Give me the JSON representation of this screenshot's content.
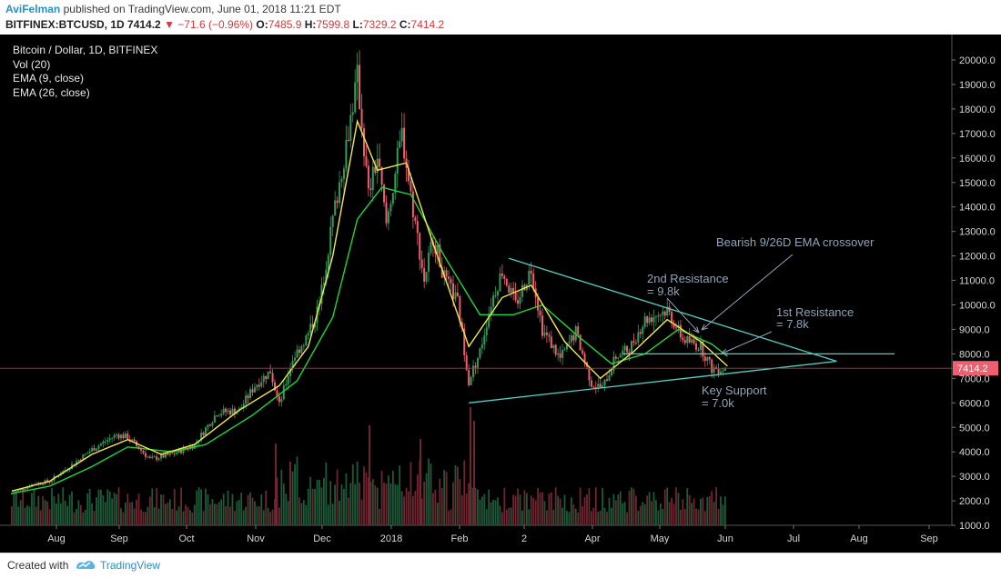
{
  "header": {
    "author": "AviFelman",
    "published": "published on TradingView.com, June 01, 2018 11:21 EDT",
    "symbol": "BITFINEX:BTCUSD, 1D",
    "last": "7414.2",
    "change": "−71.6 (−0.96%)",
    "o_label": "O:",
    "o_value": "7485.9",
    "h_label": "H:",
    "h_value": "7599.8",
    "l_label": "L:",
    "l_value": "7329.2",
    "c_label": "C:",
    "c_value": "7414.2"
  },
  "legend": {
    "title": "Bitcoin / Dollar, 1D, BITFINEX",
    "vol": "Vol (20)",
    "ema9": "EMA (9, close)",
    "ema26": "EMA (26, close)"
  },
  "footer": {
    "created": "Created with",
    "brand": "TradingView"
  },
  "colors": {
    "up": "#2e9e5b",
    "down": "#ef5f6f",
    "ema9": "#f2e94a",
    "ema26": "#22d43b",
    "trend": "#4fd1c5",
    "annotation": "#8fa3b8",
    "price_line": "#b23a48"
  },
  "chart_data": {
    "type": "candlestick",
    "y_axis_ticks": [
      "20000.0",
      "19000.0",
      "18000.0",
      "17000.0",
      "16000.0",
      "15000.0",
      "14000.0",
      "13000.0",
      "12000.0",
      "11000.0",
      "10000.0",
      "9000.0",
      "8000.0",
      "7000.0",
      "6000.0",
      "5000.0",
      "4000.0",
      "3000.0",
      "2000.0",
      "1000.0"
    ],
    "x_axis_ticks": [
      "Aug",
      "Sep",
      "Oct",
      "Nov",
      "Dec",
      "2018",
      "Feb",
      "2",
      "Apr",
      "May",
      "Jun",
      "Jul",
      "Aug",
      "Sep"
    ],
    "last_price_label": "7414.2",
    "close_path": [
      [
        "2017-07-15",
        2300
      ],
      [
        "2017-07-25",
        2700
      ],
      [
        "2017-08-01",
        2800
      ],
      [
        "2017-08-10",
        3400
      ],
      [
        "2017-08-20",
        4100
      ],
      [
        "2017-08-31",
        4700
      ],
      [
        "2017-09-05",
        4600
      ],
      [
        "2017-09-15",
        3700
      ],
      [
        "2017-09-25",
        3900
      ],
      [
        "2017-10-05",
        4300
      ],
      [
        "2017-10-15",
        5600
      ],
      [
        "2017-10-25",
        5700
      ],
      [
        "2017-11-01",
        6700
      ],
      [
        "2017-11-08",
        7300
      ],
      [
        "2017-11-12",
        5900
      ],
      [
        "2017-11-18",
        7800
      ],
      [
        "2017-11-25",
        8800
      ],
      [
        "2017-11-30",
        10000
      ],
      [
        "2017-12-06",
        13500
      ],
      [
        "2017-12-10",
        15500
      ],
      [
        "2017-12-17",
        19300
      ],
      [
        "2017-12-22",
        14500
      ],
      [
        "2017-12-26",
        16000
      ],
      [
        "2017-12-30",
        13300
      ],
      [
        "2018-01-06",
        17000
      ],
      [
        "2018-01-10",
        14500
      ],
      [
        "2018-01-16",
        11000
      ],
      [
        "2018-01-20",
        12800
      ],
      [
        "2018-01-25",
        11100
      ],
      [
        "2018-01-31",
        10100
      ],
      [
        "2018-02-05",
        6900
      ],
      [
        "2018-02-10",
        8100
      ],
      [
        "2018-02-15",
        10100
      ],
      [
        "2018-02-20",
        11400
      ],
      [
        "2018-02-26",
        10000
      ],
      [
        "2018-03-05",
        11500
      ],
      [
        "2018-03-10",
        9000
      ],
      [
        "2018-03-18",
        7800
      ],
      [
        "2018-03-25",
        8900
      ],
      [
        "2018-04-01",
        6800
      ],
      [
        "2018-04-06",
        6600
      ],
      [
        "2018-04-12",
        7900
      ],
      [
        "2018-04-18",
        8200
      ],
      [
        "2018-04-25",
        9400
      ],
      [
        "2018-05-05",
        9800
      ],
      [
        "2018-05-12",
        8600
      ],
      [
        "2018-05-20",
        8300
      ],
      [
        "2018-05-25",
        7400
      ],
      [
        "2018-06-01",
        7414
      ]
    ],
    "ema9_path": [
      [
        "2017-07-15",
        2400
      ],
      [
        "2017-08-01",
        2800
      ],
      [
        "2017-08-20",
        3900
      ],
      [
        "2017-09-05",
        4500
      ],
      [
        "2017-09-20",
        3900
      ],
      [
        "2017-10-05",
        4300
      ],
      [
        "2017-10-25",
        5700
      ],
      [
        "2017-11-12",
        6700
      ],
      [
        "2017-11-25",
        8300
      ],
      [
        "2017-12-06",
        12000
      ],
      [
        "2017-12-17",
        17500
      ],
      [
        "2017-12-26",
        15500
      ],
      [
        "2018-01-08",
        15800
      ],
      [
        "2018-01-20",
        12500
      ],
      [
        "2018-02-05",
        8300
      ],
      [
        "2018-02-20",
        10300
      ],
      [
        "2018-03-05",
        10800
      ],
      [
        "2018-03-20",
        8500
      ],
      [
        "2018-04-05",
        7000
      ],
      [
        "2018-04-20",
        8100
      ],
      [
        "2018-05-05",
        9400
      ],
      [
        "2018-05-20",
        8500
      ],
      [
        "2018-06-01",
        7500
      ]
    ],
    "ema26_path": [
      [
        "2017-07-15",
        2300
      ],
      [
        "2017-08-01",
        2600
      ],
      [
        "2017-08-20",
        3400
      ],
      [
        "2017-09-05",
        4200
      ],
      [
        "2017-09-25",
        4000
      ],
      [
        "2017-10-10",
        4300
      ],
      [
        "2017-10-31",
        5500
      ],
      [
        "2017-11-20",
        6900
      ],
      [
        "2017-12-06",
        9500
      ],
      [
        "2017-12-17",
        13500
      ],
      [
        "2017-12-28",
        14800
      ],
      [
        "2018-01-10",
        14500
      ],
      [
        "2018-01-25",
        12000
      ],
      [
        "2018-02-10",
        9600
      ],
      [
        "2018-02-25",
        9600
      ],
      [
        "2018-03-10",
        10000
      ],
      [
        "2018-03-25",
        8800
      ],
      [
        "2018-04-10",
        7600
      ],
      [
        "2018-04-25",
        8000
      ],
      [
        "2018-05-10",
        9000
      ],
      [
        "2018-05-25",
        8400
      ],
      [
        "2018-06-01",
        7900
      ]
    ],
    "annotations": {
      "crossover": "Bearish 9/26D EMA crossover",
      "res2_a": "2nd Resistance",
      "res2_b": "= 9.8k",
      "res1_a": "1st Resistance",
      "res1_b": "= 7.8k",
      "support_a": "Key Support",
      "support_b": "= 7.0k"
    },
    "trendlines": [
      {
        "from": [
          "2018-02-05",
          6000
        ],
        "to": [
          "2018-07-20",
          7700
        ]
      },
      {
        "from": [
          "2018-02-23",
          11900
        ],
        "to": [
          "2018-07-20",
          7700
        ]
      },
      {
        "from": [
          "2018-04-15",
          8000
        ],
        "to": [
          "2018-08-15",
          8000
        ]
      }
    ]
  }
}
